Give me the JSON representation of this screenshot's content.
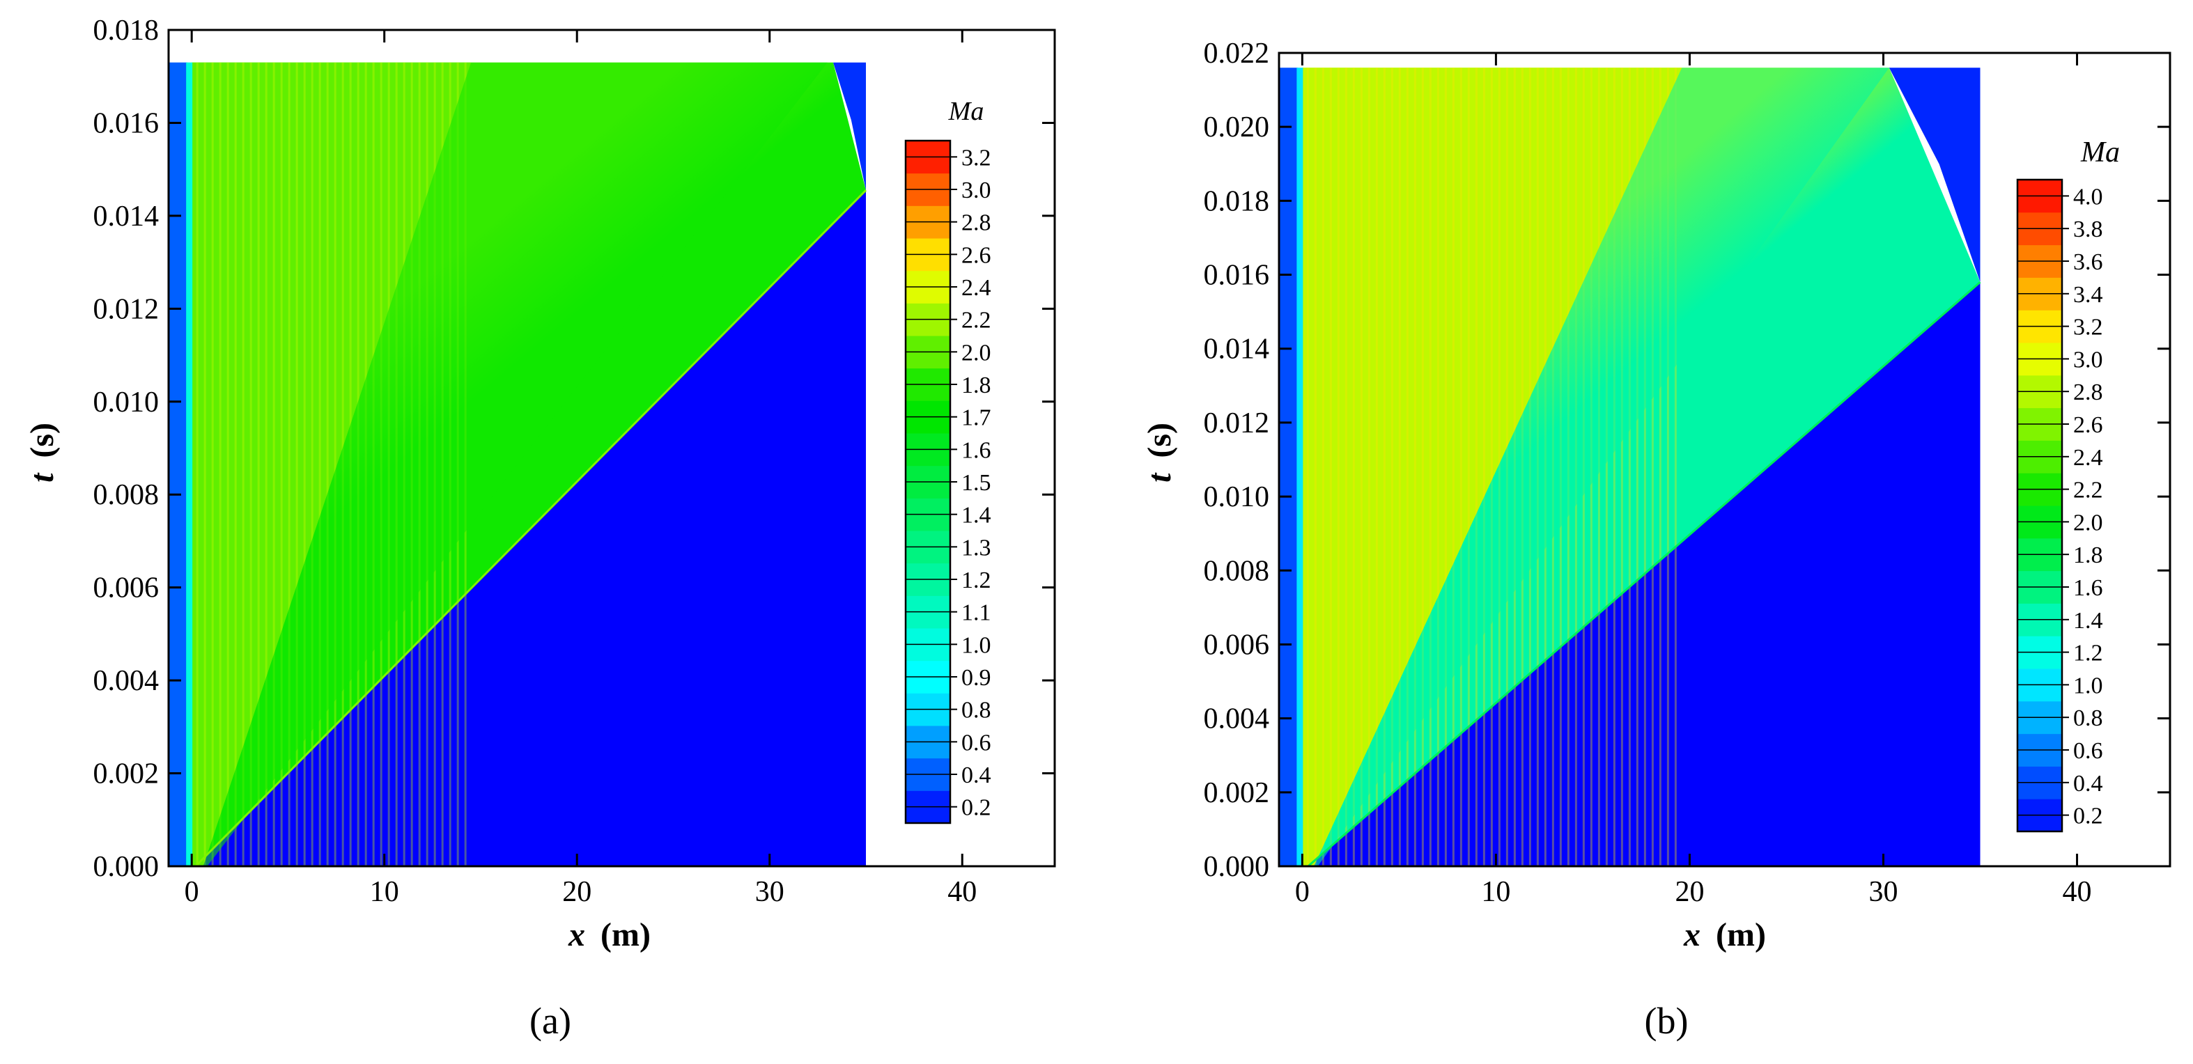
{
  "chart_data": [
    {
      "type": "heatmap",
      "panel_label": "(a)",
      "xlabel_var": "x",
      "xlabel_unit": "(m)",
      "ylabel_var": "t",
      "ylabel_unit": "(s)",
      "xlim": [
        -1.2,
        44.8
      ],
      "ylim": [
        0,
        0.018
      ],
      "x_ticks": [
        "0",
        "10",
        "20",
        "30",
        "40"
      ],
      "x_tick_values": [
        0,
        10,
        20,
        30,
        40
      ],
      "y_ticks": [
        "0.000",
        "0.002",
        "0.004",
        "0.006",
        "0.008",
        "0.010",
        "0.012",
        "0.014",
        "0.016",
        "0.018"
      ],
      "y_tick_values": [
        0,
        0.002,
        0.004,
        0.006,
        0.008,
        0.01,
        0.012,
        0.014,
        0.016,
        0.018
      ],
      "data_extent": {
        "x_max": 35,
        "t_max": 0.0173
      },
      "shock_front": [
        [
          0.2,
          0.0
        ],
        [
          35.0,
          0.01455
        ]
      ],
      "top_boundary_kink_x": 33.3,
      "expansion_fan_boundary": [
        [
          0.6,
          0.0
        ],
        [
          14.5,
          0.0173
        ]
      ],
      "fan_outer_boundary": [
        [
          0.8,
          0.0
        ],
        [
          33.0,
          0.0173
        ]
      ],
      "region_values": {
        "left_inlet": 0.4,
        "fan": 2.0,
        "post_fan": 1.75,
        "near_shock": 1.9,
        "undisturbed": 0.1
      },
      "colorbar_title": "Ma",
      "colorbar_levels": [
        "0.2",
        "0.4",
        "0.6",
        "0.8",
        "0.9",
        "1.0",
        "1.1",
        "1.2",
        "1.3",
        "1.4",
        "1.5",
        "1.6",
        "1.7",
        "1.8",
        "2.0",
        "2.2",
        "2.4",
        "2.6",
        "2.8",
        "3.0",
        "3.2"
      ],
      "colorbar_range": [
        0.1,
        3.3
      ]
    },
    {
      "type": "heatmap",
      "panel_label": "(b)",
      "xlabel_var": "x",
      "xlabel_unit": "(m)",
      "ylabel_var": "t",
      "ylabel_unit": "(s)",
      "xlim": [
        -1.2,
        44.8
      ],
      "ylim": [
        0,
        0.022
      ],
      "x_ticks": [
        "0",
        "10",
        "20",
        "30",
        "40"
      ],
      "x_tick_values": [
        0,
        10,
        20,
        30,
        40
      ],
      "y_ticks": [
        "0.000",
        "0.002",
        "0.004",
        "0.006",
        "0.008",
        "0.010",
        "0.012",
        "0.014",
        "0.016",
        "0.018",
        "0.020",
        "0.022"
      ],
      "y_tick_values": [
        0,
        0.002,
        0.004,
        0.006,
        0.008,
        0.01,
        0.012,
        0.014,
        0.016,
        0.018,
        0.02,
        0.022
      ],
      "data_extent": {
        "x_max": 35,
        "t_max": 0.0216
      },
      "shock_front": [
        [
          0.3,
          0.0
        ],
        [
          35.0,
          0.0158
        ]
      ],
      "top_boundary_kink_x": 30.3,
      "expansion_fan_boundary": [
        [
          0.6,
          0.0
        ],
        [
          19.6,
          0.0216
        ]
      ],
      "fan_outer_boundary": [
        [
          0.8,
          0.0
        ],
        [
          30.3,
          0.0216
        ]
      ],
      "region_values": {
        "left_inlet": 0.4,
        "fan": 2.85,
        "post_fan": 1.45,
        "near_shock": 1.55,
        "undisturbed": 0.1
      },
      "colorbar_title": "Ma",
      "colorbar_levels": [
        "0.2",
        "0.4",
        "0.6",
        "0.8",
        "1.0",
        "1.2",
        "1.4",
        "1.6",
        "1.8",
        "2.0",
        "2.2",
        "2.4",
        "2.6",
        "2.8",
        "3.0",
        "3.2",
        "3.4",
        "3.6",
        "3.8",
        "4.0"
      ],
      "colorbar_range": [
        0.1,
        4.1
      ]
    }
  ]
}
